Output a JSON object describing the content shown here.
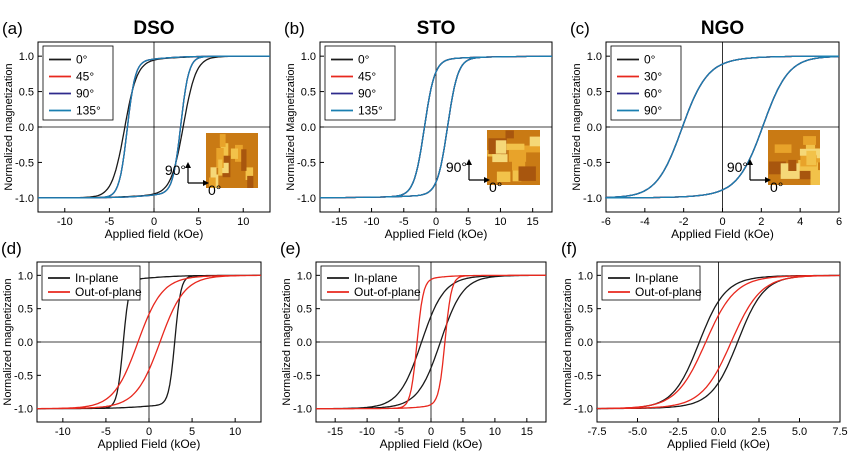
{
  "colors": {
    "black": "#1a1a1a",
    "red": "#e8281e",
    "navy": "#2e2a8c",
    "teal": "#1a7fb0",
    "axis": "#000000"
  },
  "chart_data": [
    {
      "type": "line",
      "panel_label": "(a)",
      "title": "DSO",
      "xlabel": "Applied field (kOe)",
      "ylabel": "Normalized magnetization",
      "xlim": [
        -13,
        13
      ],
      "ylim": [
        -1.2,
        1.2
      ],
      "xticks": [
        "-10",
        "-5",
        "0",
        "5",
        "10"
      ],
      "xtick_values": [
        -10,
        -5,
        0,
        5,
        10
      ],
      "yticks": [
        "1.0",
        "0.5",
        "0.0",
        "-0.5",
        "-1.0"
      ],
      "ytick_values": [
        1.0,
        0.5,
        0.0,
        -0.5,
        -1.0
      ],
      "legend_position": "top-left",
      "series": [
        {
          "name": "0°",
          "color": "black",
          "hc": 3.3,
          "w": 1.4,
          "sat": 8
        },
        {
          "name": "45°",
          "color": "red",
          "hc": 3.0,
          "w": 0.9,
          "sat": 6
        },
        {
          "name": "90°",
          "color": "navy",
          "hc": 3.0,
          "w": 0.9,
          "sat": 6
        },
        {
          "name": "135°",
          "color": "teal",
          "hc": 3.0,
          "w": 0.9,
          "sat": 6
        }
      ],
      "inset": {
        "type": "afm-image",
        "angle_labels": [
          "90°",
          "0°"
        ]
      }
    },
    {
      "type": "line",
      "panel_label": "(b)",
      "title": "STO",
      "xlabel": "Applied Field (kOe)",
      "ylabel": "Normalized Magnetization",
      "xlim": [
        -18,
        18
      ],
      "ylim": [
        -1.2,
        1.2
      ],
      "xticks": [
        "-15",
        "-10",
        "-5",
        "0",
        "5",
        "10",
        "15"
      ],
      "xtick_values": [
        -15,
        -10,
        -5,
        0,
        5,
        10,
        15
      ],
      "yticks": [
        "1.0",
        "0.5",
        "0.0",
        "-0.5",
        "-1.0"
      ],
      "ytick_values": [
        1.0,
        0.5,
        0.0,
        -0.5,
        -1.0
      ],
      "legend_position": "top-left",
      "series": [
        {
          "name": "0°",
          "color": "black",
          "hc": 1.8,
          "w": 1.6,
          "sat": 16
        },
        {
          "name": "45°",
          "color": "red",
          "hc": 1.8,
          "w": 1.6,
          "sat": 16
        },
        {
          "name": "90°",
          "color": "navy",
          "hc": 1.8,
          "w": 1.6,
          "sat": 16
        },
        {
          "name": "135°",
          "color": "teal",
          "hc": 1.8,
          "w": 1.6,
          "sat": 16
        }
      ],
      "inset": {
        "type": "afm-image",
        "angle_labels": [
          "90°",
          "0°"
        ]
      }
    },
    {
      "type": "line",
      "panel_label": "(c)",
      "title": "NGO",
      "xlabel": "Applied Field (kOe)",
      "ylabel": "Normalized magnetization",
      "xlim": [
        -6,
        6
      ],
      "ylim": [
        -1.2,
        1.2
      ],
      "xticks": [
        "-6",
        "-4",
        "-2",
        "0",
        "2",
        "4",
        "6"
      ],
      "xtick_values": [
        -6,
        -4,
        -2,
        0,
        2,
        4,
        6
      ],
      "yticks": [
        "1.0",
        "0.5",
        "0.0",
        "-0.5",
        "-1.0"
      ],
      "ytick_values": [
        1.0,
        0.5,
        0.0,
        -0.5,
        -1.0
      ],
      "legend_position": "top-left",
      "series": [
        {
          "name": "0°",
          "color": "black",
          "hc": 2.1,
          "w": 1.3,
          "sat": 4
        },
        {
          "name": "30°",
          "color": "red",
          "hc": 2.1,
          "w": 1.3,
          "sat": 4
        },
        {
          "name": "60°",
          "color": "navy",
          "hc": 2.1,
          "w": 1.3,
          "sat": 4
        },
        {
          "name": "90°",
          "color": "teal",
          "hc": 2.1,
          "w": 1.3,
          "sat": 4
        }
      ],
      "inset": {
        "type": "afm-image",
        "angle_labels": [
          "90°",
          "0°"
        ]
      }
    },
    {
      "type": "line",
      "panel_label": "(d)",
      "title": "",
      "xlabel": "Applied Field (kOe)",
      "ylabel": "Normalized magnetization",
      "xlim": [
        -13,
        13
      ],
      "ylim": [
        -1.2,
        1.2
      ],
      "xticks": [
        "-10",
        "-5",
        "0",
        "5",
        "10"
      ],
      "xtick_values": [
        -10,
        -5,
        0,
        5,
        10
      ],
      "yticks": [
        "1.0",
        "0.5",
        "0.0",
        "-0.5",
        "-1.0"
      ],
      "ytick_values": [
        1.0,
        0.5,
        0.0,
        -0.5,
        -1.0
      ],
      "legend_position": "top-left",
      "series": [
        {
          "name": "In-plane",
          "color": "black",
          "hc": 3.0,
          "w": 0.7,
          "sat": 7
        },
        {
          "name": "Out-of-plane",
          "color": "red",
          "hc": 1.3,
          "w": 2.8,
          "sat": 10
        }
      ]
    },
    {
      "type": "line",
      "panel_label": "(e)",
      "title": "",
      "xlabel": "Applied Field (kOe)",
      "ylabel": "Normalized magnetization",
      "xlim": [
        -18,
        18
      ],
      "ylim": [
        -1.2,
        1.2
      ],
      "xticks": [
        "-15",
        "-10",
        "-5",
        "0",
        "5",
        "10",
        "15"
      ],
      "xtick_values": [
        -15,
        -10,
        -5,
        0,
        5,
        10,
        15
      ],
      "yticks": [
        "1.0",
        "0.5",
        "0.0",
        "-0.5",
        "-1.0"
      ],
      "ytick_values": [
        1.0,
        0.5,
        0.0,
        -0.5,
        -1.0
      ],
      "legend_position": "top-left",
      "series": [
        {
          "name": "In-plane",
          "color": "black",
          "hc": 1.5,
          "w": 3.5,
          "sat": 12
        },
        {
          "name": "Out-of-plane",
          "color": "red",
          "hc": 2.2,
          "w": 1.0,
          "sat": 7
        }
      ]
    },
    {
      "type": "line",
      "panel_label": "(f)",
      "title": "",
      "xlabel": "Applied Field (kOe)",
      "ylabel": "Normalized magnetization",
      "xlim": [
        -7.5,
        7.5
      ],
      "ylim": [
        -1.2,
        1.2
      ],
      "xticks": [
        "-7.5",
        "-5.0",
        "-2.5",
        "0.0",
        "2.5",
        "5.0",
        "7.5"
      ],
      "xtick_values": [
        -7.5,
        -5,
        -2.5,
        0,
        2.5,
        5,
        7.5
      ],
      "yticks": [
        "1.0",
        "0.5",
        "0.0",
        "-0.5",
        "-1.0"
      ],
      "ytick_values": [
        1.0,
        0.5,
        0.0,
        -0.5,
        -1.0
      ],
      "legend_position": "top-left",
      "series": [
        {
          "name": "In-plane",
          "color": "black",
          "hc": 1.2,
          "w": 1.6,
          "sat": 6
        },
        {
          "name": "Out-of-plane",
          "color": "red",
          "hc": 0.8,
          "w": 1.8,
          "sat": 6.5
        }
      ]
    }
  ]
}
